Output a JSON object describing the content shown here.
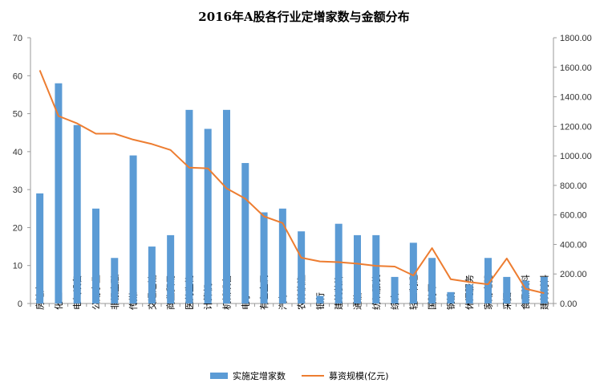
{
  "chart_data": {
    "type": "bar",
    "title": "2016年A股各行业定增家数与金额分布",
    "categories": [
      "房地产",
      "化工",
      "电气设备",
      "公用事业",
      "非银金融",
      "传媒",
      "交通运输",
      "商业贸易",
      "医药生物",
      "计算机",
      "机械设备",
      "电子",
      "有色金属",
      "汽车",
      "农林牧渔",
      "银行",
      "建筑装饰",
      "通信",
      "纺织服装",
      "综合",
      "轻工制造",
      "国防军工",
      "钢铁",
      "休闲服务",
      "家用电器",
      "采掘",
      "食品饮料",
      "建筑材料"
    ],
    "series": [
      {
        "name": "实施定增家数",
        "type": "bar",
        "axis": "left",
        "color": "#5B9BD5",
        "values": [
          29,
          58,
          47,
          25,
          12,
          39,
          15,
          18,
          51,
          46,
          51,
          37,
          24,
          25,
          19,
          2,
          21,
          18,
          18,
          7,
          16,
          12,
          3,
          5,
          12,
          7,
          6,
          7
        ]
      },
      {
        "name": "募资规模(亿元)",
        "type": "line",
        "axis": "right",
        "color": "#ED7D31",
        "values": [
          1580,
          1270,
          1220,
          1150,
          1150,
          1110,
          1080,
          1040,
          920,
          915,
          780,
          710,
          590,
          545,
          310,
          285,
          280,
          270,
          255,
          250,
          190,
          375,
          165,
          145,
          130,
          305,
          100,
          70
        ]
      }
    ],
    "yleft": {
      "ylim": [
        0,
        70
      ],
      "ticks": [
        "0",
        "10",
        "20",
        "30",
        "40",
        "50",
        "60",
        "70"
      ]
    },
    "yright": {
      "ylim": [
        0,
        1800
      ],
      "ticks": [
        "0.00",
        "200.00",
        "400.00",
        "600.00",
        "800.00",
        "1000.00",
        "1200.00",
        "1400.00",
        "1600.00",
        "1800.00"
      ]
    },
    "legend": "bottom",
    "grid": false
  }
}
